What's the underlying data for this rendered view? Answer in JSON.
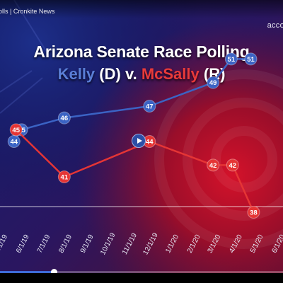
{
  "video": {
    "title": "olls | Cronkite News",
    "source_label": "accor",
    "progress": 0.19
  },
  "chart_data": {
    "type": "line",
    "title": "Arizona Senate Race Polling",
    "subtitle_parts": [
      "Kelly",
      "(D)",
      "v.",
      "McSally",
      "(R)"
    ],
    "x": [
      "5/1/19",
      "6/1/19",
      "7/1/19",
      "8/1/19",
      "9/1/19",
      "10/1/19",
      "11/1/19",
      "12/1/19",
      "1/1/20",
      "2/1/20",
      "3/1/20",
      "4/1/20",
      "5/1/20",
      "6/1/20"
    ],
    "xlabel": "",
    "ylabel": "",
    "ylim": [
      32,
      56
    ],
    "grid": false,
    "legend": "none",
    "series": [
      {
        "name": "Kelly (D)",
        "color": "#3b63c4",
        "points": [
          {
            "x": "5/21/19",
            "y": 44
          },
          {
            "x": "6/1/19",
            "y": 45
          },
          {
            "x": "8/1/19",
            "y": 46
          },
          {
            "x": "12/1/19",
            "y": 47
          },
          {
            "x": "3/1/20",
            "y": 49
          },
          {
            "x": "3/27/20",
            "y": 51
          },
          {
            "x": "4/24/20",
            "y": 51
          }
        ]
      },
      {
        "name": "McSally (R)",
        "color": "#e53535",
        "points": [
          {
            "x": "5/24/19",
            "y": 45
          },
          {
            "x": "8/1/19",
            "y": 41
          },
          {
            "x": "12/1/19",
            "y": 44
          },
          {
            "x": "3/1/20",
            "y": 42
          },
          {
            "x": "3/29/20",
            "y": 42
          },
          {
            "x": "4/28/20",
            "y": 38
          }
        ]
      }
    ]
  }
}
